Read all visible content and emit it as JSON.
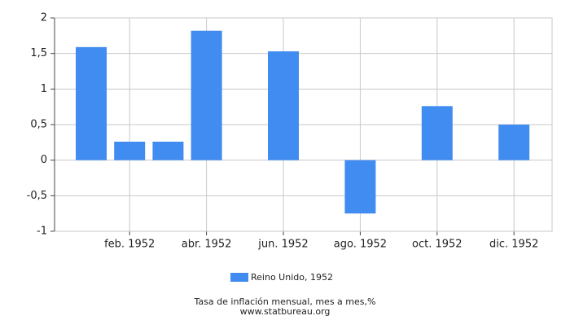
{
  "chart_data": {
    "type": "bar",
    "categories": [
      null,
      "feb. 1952",
      null,
      "abr. 1952",
      null,
      "jun. 1952",
      null,
      "ago. 1952",
      null,
      "oct. 1952",
      null,
      "dic. 1952"
    ],
    "series": [
      {
        "name": "Reino Unido, 1952",
        "color": "#418cf0",
        "values": [
          1.59,
          0.26,
          0.26,
          1.82,
          0,
          1.53,
          0,
          -0.75,
          0,
          0.76,
          0,
          0.5
        ]
      }
    ],
    "ylim": [
      -1,
      2
    ],
    "yticks": [
      -1,
      {
        "value": -0.5,
        "label": "-0,5"
      },
      0,
      {
        "value": 0.5,
        "label": "0,5"
      },
      1,
      {
        "value": 1.5,
        "label": "1,5"
      },
      2
    ],
    "grid": true,
    "footer": "Tasa de inflación mensual, mes a mes,%",
    "source": "www.statbureau.org"
  }
}
